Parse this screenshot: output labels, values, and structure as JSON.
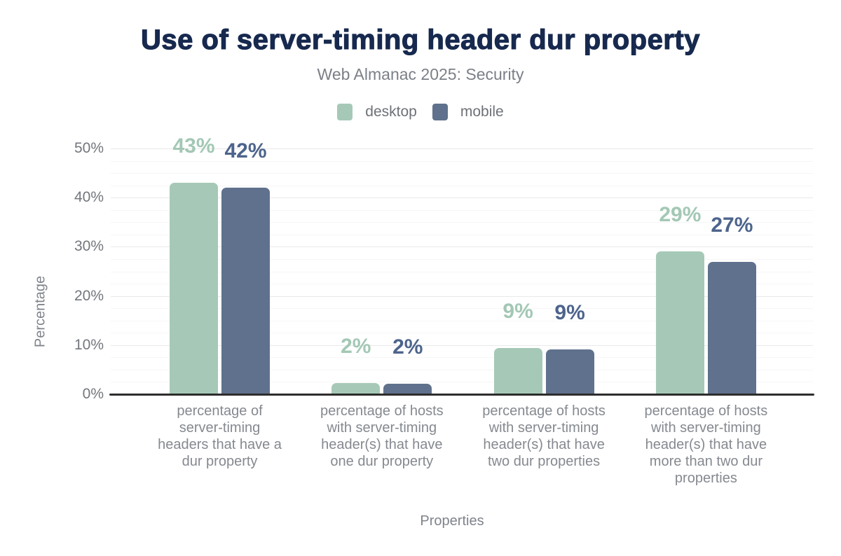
{
  "header": {
    "title": "Use of server-timing header dur property",
    "subtitle": "Web Almanac 2025: Security"
  },
  "chart_data": {
    "type": "bar",
    "title": "Use of server-timing header dur property",
    "subtitle": "Web Almanac 2025: Security",
    "xlabel": "Properties",
    "ylabel": "Percentage",
    "ylim": [
      0,
      50
    ],
    "yticks": [
      0,
      10,
      20,
      30,
      40,
      50
    ],
    "ytick_labels": [
      "0%",
      "10%",
      "20%",
      "30%",
      "40%",
      "50%"
    ],
    "grid": {
      "major_step": 10,
      "minor_step": 2.5
    },
    "legend_position": "top",
    "categories": [
      "percentage of server-timing headers that have a dur property",
      "percentage of hosts with server-timing header(s) that have one dur property",
      "percentage of hosts with server-timing header(s) that have two dur properties",
      "percentage of hosts with server-timing header(s) that have more than two dur properties"
    ],
    "category_lines": [
      [
        "percentage of",
        "server-timing",
        "headers that have a",
        "dur property"
      ],
      [
        "percentage of hosts",
        "with server-timing",
        "header(s) that have",
        "one dur property"
      ],
      [
        "percentage of hosts",
        "with server-timing",
        "header(s) that have",
        "two dur properties"
      ],
      [
        "percentage of hosts",
        "with server-timing",
        "header(s) that have",
        "more than two dur",
        "properties"
      ]
    ],
    "series": [
      {
        "name": "desktop",
        "color": "#a6c9b7",
        "label_color": "#a3c8b5",
        "values": [
          43,
          2,
          9,
          29
        ],
        "values_precise": [
          43.0,
          2.3,
          9.4,
          29.1
        ],
        "labels": [
          "43%",
          "2%",
          "9%",
          "29%"
        ]
      },
      {
        "name": "mobile",
        "color": "#5f718c",
        "label_color": "#4d648c",
        "values": [
          42,
          2,
          9,
          27
        ],
        "values_precise": [
          42.0,
          2.2,
          9.1,
          26.9
        ],
        "labels": [
          "42%",
          "2%",
          "9%",
          "27%"
        ]
      }
    ]
  },
  "colors": {
    "title": "#17294e",
    "subtitle": "#7b8087",
    "axis_text": "#73777d",
    "category_text": "#85898f",
    "axis_line": "#2d2d2d",
    "grid_major": "#e9e9e9",
    "grid_minor": "#f6f6f6"
  }
}
